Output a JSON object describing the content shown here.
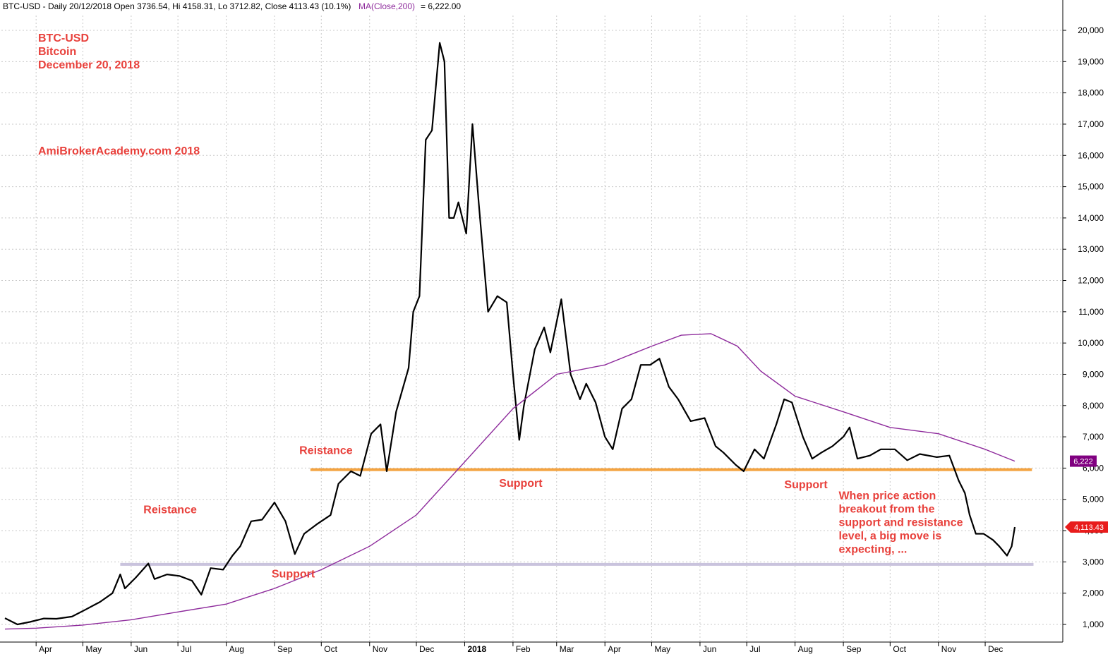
{
  "header": {
    "symbol_line": "BTC-USD - Daily 20/12/2018 Open 3736.54, Hi 4158.31, Lo 3712.82, Close 4113.43 (10.1%)",
    "ma_label": "MA(Close,200)",
    "ma_value": " = 6,222.00"
  },
  "title_block": {
    "line1": "BTC-USD",
    "line2": "Bitcoin",
    "line3": "December 20, 2018",
    "watermark": "AmiBrokerAcademy.com  2018"
  },
  "colors": {
    "price": "#000000",
    "ma": "#8e2b9c",
    "resistance_line": "#f4a340",
    "support_line": "#c9c3dd",
    "annotation": "#e8413c",
    "grid": "#c8c8c8",
    "ma_flag": "#800080",
    "price_flag": "#e81c1c"
  },
  "chart_data": {
    "type": "line",
    "title": "",
    "xlabel": "",
    "ylabel": "",
    "ylim": [
      0,
      20800
    ],
    "grid": true,
    "y_ticks": [
      1000,
      2000,
      3000,
      4000,
      5000,
      6000,
      7000,
      8000,
      9000,
      10000,
      11000,
      12000,
      13000,
      14000,
      15000,
      16000,
      17000,
      18000,
      19000,
      20000
    ],
    "y_tick_labels": [
      "1,000",
      "2,000",
      "3,000",
      "4,000",
      "5,000",
      "6,000",
      "7,000",
      "8,000",
      "9,000",
      "10,000",
      "11,000",
      "12,000",
      "13,000",
      "14,000",
      "15,000",
      "16,000",
      "17,000",
      "18,000",
      "19,000",
      "20,000"
    ],
    "x_ticks": [
      {
        "label": "Apr",
        "date": "2017-04-01"
      },
      {
        "label": "May",
        "date": "2017-05-01"
      },
      {
        "label": "Jun",
        "date": "2017-06-01"
      },
      {
        "label": "Jul",
        "date": "2017-07-01"
      },
      {
        "label": "Aug",
        "date": "2017-08-01"
      },
      {
        "label": "Sep",
        "date": "2017-09-01"
      },
      {
        "label": "Oct",
        "date": "2017-10-01"
      },
      {
        "label": "Nov",
        "date": "2017-11-01"
      },
      {
        "label": "Dec",
        "date": "2017-12-01"
      },
      {
        "label": "2018",
        "date": "2018-01-01",
        "bold": true
      },
      {
        "label": "Feb",
        "date": "2018-02-01"
      },
      {
        "label": "Mar",
        "date": "2018-03-01"
      },
      {
        "label": "Apr",
        "date": "2018-04-01"
      },
      {
        "label": "May",
        "date": "2018-05-01"
      },
      {
        "label": "Jun",
        "date": "2018-06-01"
      },
      {
        "label": "Jul",
        "date": "2018-07-01"
      },
      {
        "label": "Aug",
        "date": "2018-08-01"
      },
      {
        "label": "Sep",
        "date": "2018-09-01"
      },
      {
        "label": "Oct",
        "date": "2018-10-01"
      },
      {
        "label": "Nov",
        "date": "2018-11-01"
      },
      {
        "label": "Dec",
        "date": "2018-12-01"
      }
    ],
    "series": [
      {
        "type": "price",
        "points": [
          [
            "2017-03-12",
            1200
          ],
          [
            "2017-03-20",
            1000
          ],
          [
            "2017-03-28",
            1080
          ],
          [
            "2017-04-06",
            1190
          ],
          [
            "2017-04-14",
            1180
          ],
          [
            "2017-04-24",
            1250
          ],
          [
            "2017-05-03",
            1480
          ],
          [
            "2017-05-12",
            1720
          ],
          [
            "2017-05-20",
            2000
          ],
          [
            "2017-05-25",
            2600
          ],
          [
            "2017-05-28",
            2150
          ],
          [
            "2017-06-04",
            2500
          ],
          [
            "2017-06-12",
            2950
          ],
          [
            "2017-06-16",
            2450
          ],
          [
            "2017-06-24",
            2600
          ],
          [
            "2017-07-02",
            2550
          ],
          [
            "2017-07-10",
            2400
          ],
          [
            "2017-07-16",
            1950
          ],
          [
            "2017-07-22",
            2800
          ],
          [
            "2017-07-30",
            2750
          ],
          [
            "2017-08-05",
            3200
          ],
          [
            "2017-08-10",
            3500
          ],
          [
            "2017-08-17",
            4300
          ],
          [
            "2017-08-24",
            4350
          ],
          [
            "2017-09-01",
            4900
          ],
          [
            "2017-09-08",
            4300
          ],
          [
            "2017-09-14",
            3250
          ],
          [
            "2017-09-20",
            3900
          ],
          [
            "2017-09-28",
            4200
          ],
          [
            "2017-10-07",
            4500
          ],
          [
            "2017-10-12",
            5500
          ],
          [
            "2017-10-20",
            5900
          ],
          [
            "2017-10-26",
            5750
          ],
          [
            "2017-11-02",
            7100
          ],
          [
            "2017-11-08",
            7400
          ],
          [
            "2017-11-12",
            5900
          ],
          [
            "2017-11-18",
            7800
          ],
          [
            "2017-11-26",
            9200
          ],
          [
            "2017-11-29",
            11000
          ],
          [
            "2017-12-03",
            11500
          ],
          [
            "2017-12-07",
            16500
          ],
          [
            "2017-12-11",
            16800
          ],
          [
            "2017-12-16",
            19600
          ],
          [
            "2017-12-19",
            19000
          ],
          [
            "2017-12-22",
            14000
          ],
          [
            "2017-12-25",
            14000
          ],
          [
            "2017-12-28",
            14500
          ],
          [
            "2018-01-02",
            13500
          ],
          [
            "2018-01-06",
            17000
          ],
          [
            "2018-01-10",
            14500
          ],
          [
            "2018-01-16",
            11000
          ],
          [
            "2018-01-22",
            11500
          ],
          [
            "2018-01-28",
            11300
          ],
          [
            "2018-02-01",
            9000
          ],
          [
            "2018-02-05",
            6900
          ],
          [
            "2018-02-08",
            8000
          ],
          [
            "2018-02-15",
            9800
          ],
          [
            "2018-02-21",
            10500
          ],
          [
            "2018-02-25",
            9700
          ],
          [
            "2018-03-04",
            11400
          ],
          [
            "2018-03-10",
            9000
          ],
          [
            "2018-03-16",
            8200
          ],
          [
            "2018-03-20",
            8700
          ],
          [
            "2018-03-26",
            8100
          ],
          [
            "2018-04-01",
            7000
          ],
          [
            "2018-04-06",
            6600
          ],
          [
            "2018-04-12",
            7900
          ],
          [
            "2018-04-18",
            8200
          ],
          [
            "2018-04-24",
            9300
          ],
          [
            "2018-04-30",
            9300
          ],
          [
            "2018-05-06",
            9500
          ],
          [
            "2018-05-12",
            8600
          ],
          [
            "2018-05-18",
            8200
          ],
          [
            "2018-05-26",
            7500
          ],
          [
            "2018-06-04",
            7600
          ],
          [
            "2018-06-11",
            6700
          ],
          [
            "2018-06-16",
            6500
          ],
          [
            "2018-06-24",
            6100
          ],
          [
            "2018-06-29",
            5900
          ],
          [
            "2018-07-06",
            6600
          ],
          [
            "2018-07-12",
            6300
          ],
          [
            "2018-07-20",
            7400
          ],
          [
            "2018-07-25",
            8200
          ],
          [
            "2018-07-30",
            8100
          ],
          [
            "2018-08-06",
            7000
          ],
          [
            "2018-08-12",
            6300
          ],
          [
            "2018-08-18",
            6500
          ],
          [
            "2018-08-25",
            6700
          ],
          [
            "2018-09-01",
            7000
          ],
          [
            "2018-09-05",
            7300
          ],
          [
            "2018-09-10",
            6300
          ],
          [
            "2018-09-18",
            6400
          ],
          [
            "2018-09-25",
            6600
          ],
          [
            "2018-10-04",
            6600
          ],
          [
            "2018-10-12",
            6250
          ],
          [
            "2018-10-20",
            6450
          ],
          [
            "2018-10-31",
            6350
          ],
          [
            "2018-11-08",
            6400
          ],
          [
            "2018-11-14",
            5600
          ],
          [
            "2018-11-18",
            5200
          ],
          [
            "2018-11-21",
            4500
          ],
          [
            "2018-11-25",
            3900
          ],
          [
            "2018-11-30",
            3900
          ],
          [
            "2018-12-06",
            3700
          ],
          [
            "2018-12-10",
            3500
          ],
          [
            "2018-12-15",
            3200
          ],
          [
            "2018-12-18",
            3500
          ],
          [
            "2018-12-20",
            4113
          ]
        ]
      },
      {
        "name": "MA(Close,200)",
        "type": "ma",
        "points": [
          [
            "2017-03-12",
            850
          ],
          [
            "2017-04-01",
            880
          ],
          [
            "2017-05-01",
            980
          ],
          [
            "2017-06-01",
            1150
          ],
          [
            "2017-07-01",
            1400
          ],
          [
            "2017-08-01",
            1650
          ],
          [
            "2017-09-01",
            2150
          ],
          [
            "2017-10-01",
            2750
          ],
          [
            "2017-11-01",
            3500
          ],
          [
            "2017-12-01",
            4500
          ],
          [
            "2018-01-01",
            6200
          ],
          [
            "2018-02-01",
            7900
          ],
          [
            "2018-03-01",
            9000
          ],
          [
            "2018-04-01",
            9300
          ],
          [
            "2018-05-01",
            9900
          ],
          [
            "2018-05-20",
            10250
          ],
          [
            "2018-06-08",
            10300
          ],
          [
            "2018-06-25",
            9900
          ],
          [
            "2018-07-10",
            9100
          ],
          [
            "2018-08-01",
            8300
          ],
          [
            "2018-09-01",
            7800
          ],
          [
            "2018-10-01",
            7300
          ],
          [
            "2018-11-01",
            7100
          ],
          [
            "2018-12-01",
            6600
          ],
          [
            "2018-12-20",
            6222
          ]
        ]
      }
    ],
    "reference_lines": [
      {
        "name": "resistance-support-6000",
        "value": 5950,
        "from": "2017-09-24",
        "to": "2018-12-31"
      },
      {
        "name": "resistance-support-2900",
        "value": 2920,
        "from": "2017-05-25",
        "to": "2019-01-01"
      }
    ],
    "annotations": [
      {
        "text": "Reistance",
        "date": "2017-06-26",
        "value": 4550
      },
      {
        "text": "Support",
        "date": "2017-09-13",
        "value": 2500
      },
      {
        "text": "Reistance",
        "date": "2017-10-04",
        "value": 6450
      },
      {
        "text": "Support",
        "date": "2018-02-06",
        "value": 5400
      },
      {
        "text": "Support",
        "date": "2018-08-08",
        "value": 5350
      }
    ],
    "note": {
      "lines": [
        "When price action",
        "breakout from the",
        "support and resistance",
        "level, a big move is",
        "expecting, ..."
      ],
      "date": "2018-08-29",
      "value": 5000
    },
    "value_flags": [
      {
        "label": "6,222",
        "value": 6222,
        "kind": "ma"
      },
      {
        "label": "4,113.43",
        "value": 4113,
        "kind": "price"
      }
    ],
    "legend": "none"
  }
}
